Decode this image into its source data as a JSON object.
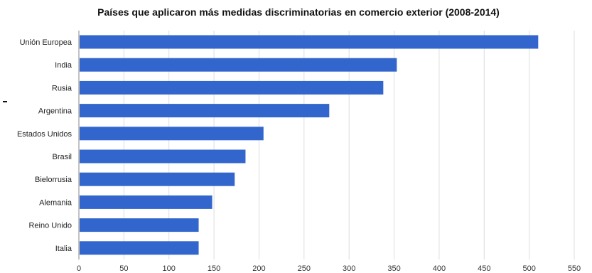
{
  "chart_data": {
    "type": "bar",
    "orientation": "horizontal",
    "title": "Países que aplicaron más medidas discriminatorias en comercio exterior (2008-2014)",
    "xlabel": "",
    "ylabel": "",
    "categories": [
      "Unión Europea",
      "India",
      "Rusia",
      "Argentina",
      "Estados Unidos",
      "Brasil",
      "Bielorrusia",
      "Alemania",
      "Reino Unido",
      "Italia"
    ],
    "values": [
      510,
      353,
      338,
      278,
      205,
      185,
      173,
      148,
      133,
      133
    ],
    "xlim": [
      0,
      550
    ],
    "ticks": [
      "0",
      "50",
      "100",
      "150",
      "200",
      "250",
      "300",
      "350",
      "400",
      "450",
      "500",
      "550"
    ],
    "grid": true,
    "bar_color": "#3366cc",
    "grid_color": "#dddddd"
  }
}
